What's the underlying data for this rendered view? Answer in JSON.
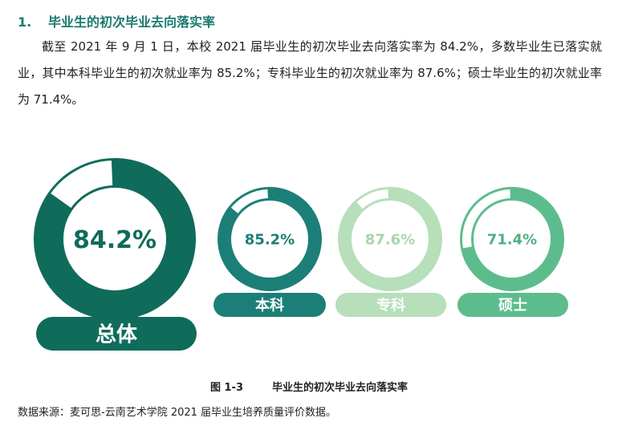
{
  "heading": {
    "number": "1.",
    "title": "毕业生的初次毕业去向落实率"
  },
  "paragraph": "截至 2021 年 9 月 1 日，本校 2021 届毕业生的初次毕业去向落实率为 84.2%，多数毕业生已落实就业，其中本科毕业生的初次就业率为 85.2%；专科毕业生的初次就业率为 87.6%；硕士毕业生的初次就业率为 71.4%。",
  "chart_data": {
    "type": "donut",
    "unit": "%",
    "series": [
      {
        "category": "总体",
        "value": 84.2,
        "label": "84.2%",
        "color": "#0f6b5a",
        "value_text_color": "#0f6b5a"
      },
      {
        "category": "本科",
        "value": 85.2,
        "label": "85.2%",
        "color": "#1c7f77",
        "value_text_color": "#1c7f77"
      },
      {
        "category": "专科",
        "value": 87.6,
        "label": "87.6%",
        "color": "#b6dfba",
        "value_text_color": "#a6d6ab"
      },
      {
        "category": "硕士",
        "value": 71.4,
        "label": "71.4%",
        "color": "#5dbc8e",
        "value_text_color": "#4fb083"
      }
    ]
  },
  "figure": {
    "label": "图 1-3",
    "title": "毕业生的初次毕业去向落实率"
  },
  "source": "数据来源：麦可思-云南艺术学院 2021 届毕业生培养质量评价数据。"
}
